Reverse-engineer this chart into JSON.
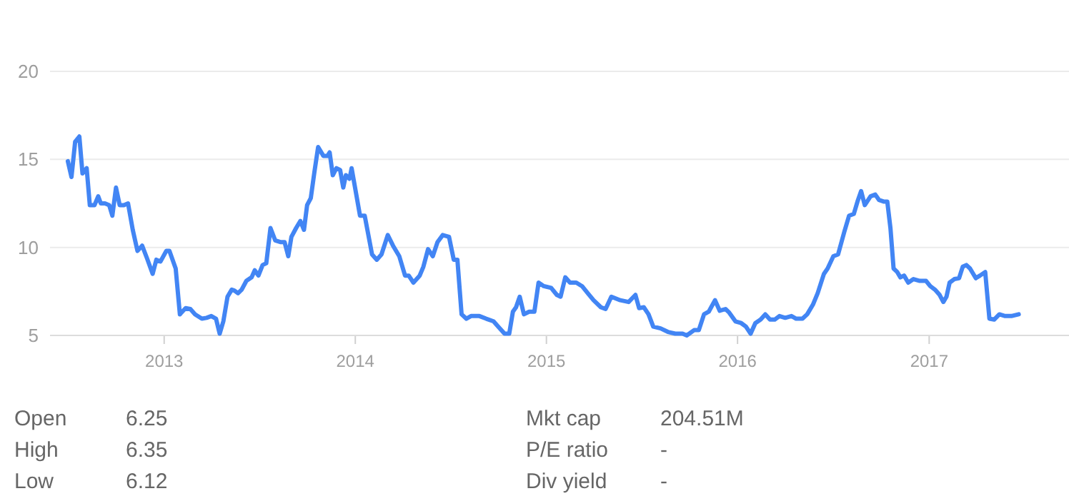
{
  "chart_data": [
    {
      "type": "line",
      "xlim": [
        "2012-05-28",
        "2017-09-25"
      ],
      "xticks": [
        "2013",
        "2014",
        "2015",
        "2016",
        "2017"
      ],
      "ylim": [
        5,
        20
      ],
      "yticks": [
        5,
        10,
        15,
        20
      ],
      "grid": "y",
      "series": [
        {
          "color": "#4285f4",
          "x": [
            "2012-07-01",
            "2012-07-08",
            "2012-07-15",
            "2012-07-23",
            "2012-07-29",
            "2012-08-06",
            "2012-08-12",
            "2012-08-21",
            "2012-08-28",
            "2012-09-02",
            "2012-09-10",
            "2012-09-18",
            "2012-09-24",
            "2012-10-01",
            "2012-10-08",
            "2012-10-16",
            "2012-10-24",
            "2012-11-02",
            "2012-11-11",
            "2012-11-20",
            "2012-11-29",
            "2012-12-10",
            "2012-12-17",
            "2012-12-25",
            "2013-01-05",
            "2013-01-11",
            "2013-01-23",
            "2013-01-31",
            "2013-02-11",
            "2013-02-20",
            "2013-03-01",
            "2013-03-14",
            "2013-03-23",
            "2013-04-01",
            "2013-04-10",
            "2013-04-17",
            "2013-04-24",
            "2013-05-02",
            "2013-05-10",
            "2013-05-15",
            "2013-05-22",
            "2013-05-29",
            "2013-06-07",
            "2013-06-17",
            "2013-06-23",
            "2013-06-30",
            "2013-07-08",
            "2013-07-15",
            "2013-07-23",
            "2013-08-01",
            "2013-08-12",
            "2013-08-19",
            "2013-08-26",
            "2013-09-01",
            "2013-09-10",
            "2013-09-18",
            "2013-09-25",
            "2013-10-01",
            "2013-10-08",
            "2013-10-15",
            "2013-10-22",
            "2013-11-01",
            "2013-11-09",
            "2013-11-13",
            "2013-11-19",
            "2013-11-26",
            "2013-12-03",
            "2013-12-09",
            "2013-12-14",
            "2013-12-21",
            "2013-12-25",
            "2014-01-10",
            "2014-01-19",
            "2014-02-02",
            "2014-02-11",
            "2014-02-20",
            "2014-03-04",
            "2014-03-14",
            "2014-03-26",
            "2014-04-06",
            "2014-04-13",
            "2014-04-22",
            "2014-05-04",
            "2014-05-11",
            "2014-05-20",
            "2014-05-29",
            "2014-06-07",
            "2014-06-17",
            "2014-06-29",
            "2014-07-08",
            "2014-07-15",
            "2014-07-23",
            "2014-08-01",
            "2014-08-10",
            "2014-08-26",
            "2014-09-08",
            "2014-09-22",
            "2014-10-01",
            "2014-10-13",
            "2014-10-22",
            "2014-10-29",
            "2014-11-04",
            "2014-11-11",
            "2014-11-19",
            "2014-11-29",
            "2014-12-09",
            "2014-12-17",
            "2014-12-27",
            "2015-01-10",
            "2015-01-21",
            "2015-01-28",
            "2015-02-06",
            "2015-02-15",
            "2015-02-27",
            "2015-03-10",
            "2015-03-21",
            "2015-04-01",
            "2015-04-15",
            "2015-04-24",
            "2015-05-05",
            "2015-05-22",
            "2015-06-07",
            "2015-06-20",
            "2015-06-27",
            "2015-07-06",
            "2015-07-15",
            "2015-07-24",
            "2015-08-07",
            "2015-08-21",
            "2015-09-04",
            "2015-09-18",
            "2015-09-26",
            "2015-10-10",
            "2015-10-19",
            "2015-10-29",
            "2015-11-07",
            "2015-11-19",
            "2015-11-28",
            "2015-12-09",
            "2015-12-16",
            "2015-12-28",
            "2016-01-08",
            "2016-01-17",
            "2016-01-26",
            "2016-02-04",
            "2016-02-14",
            "2016-02-23",
            "2016-03-03",
            "2016-03-12",
            "2016-03-21",
            "2016-04-01",
            "2016-04-13",
            "2016-04-22",
            "2016-05-04",
            "2016-05-13",
            "2016-05-24",
            "2016-06-02",
            "2016-06-14",
            "2016-06-21",
            "2016-07-02",
            "2016-07-11",
            "2016-07-23",
            "2016-08-01",
            "2016-08-10",
            "2016-08-17",
            "2016-08-24",
            "2016-08-31",
            "2016-09-11",
            "2016-09-20",
            "2016-09-27",
            "2016-10-07",
            "2016-10-13",
            "2016-10-19",
            "2016-10-25",
            "2016-11-01",
            "2016-11-07",
            "2016-11-14",
            "2016-11-22",
            "2016-12-02",
            "2016-12-14",
            "2016-12-26",
            "2017-01-03",
            "2017-01-12",
            "2017-01-21",
            "2017-01-28",
            "2017-02-03",
            "2017-02-09",
            "2017-02-18",
            "2017-02-27",
            "2017-03-06",
            "2017-03-13",
            "2017-03-20",
            "2017-03-31",
            "2017-04-08",
            "2017-04-18",
            "2017-04-26",
            "2017-05-05",
            "2017-05-15",
            "2017-05-26",
            "2017-06-07",
            "2017-06-21"
          ],
          "values": [
            14.9,
            14.0,
            16.0,
            16.3,
            14.2,
            14.5,
            12.4,
            12.4,
            12.9,
            12.5,
            12.5,
            12.4,
            11.8,
            13.4,
            12.4,
            12.4,
            12.5,
            11.0,
            9.8,
            10.1,
            9.4,
            8.5,
            9.3,
            9.2,
            9.8,
            9.8,
            8.8,
            6.2,
            6.55,
            6.5,
            6.2,
            5.95,
            6.0,
            6.1,
            5.95,
            5.1,
            5.8,
            7.2,
            7.6,
            7.55,
            7.4,
            7.6,
            8.1,
            8.3,
            8.7,
            8.4,
            9.0,
            9.1,
            11.1,
            10.4,
            10.3,
            10.3,
            9.5,
            10.6,
            11.1,
            11.5,
            11.0,
            12.4,
            12.8,
            14.3,
            15.7,
            15.2,
            15.2,
            15.4,
            14.1,
            14.5,
            14.4,
            13.4,
            14.1,
            13.9,
            14.5,
            11.8,
            11.8,
            9.6,
            9.3,
            9.6,
            10.7,
            10.1,
            9.5,
            8.4,
            8.4,
            8.0,
            8.4,
            8.9,
            9.9,
            9.5,
            10.3,
            10.7,
            10.6,
            9.3,
            9.3,
            6.2,
            5.95,
            6.1,
            6.1,
            5.95,
            5.8,
            5.5,
            5.1,
            5.1,
            6.35,
            6.6,
            7.2,
            6.2,
            6.35,
            6.35,
            8.0,
            7.8,
            7.7,
            7.3,
            7.2,
            8.3,
            8.0,
            8.0,
            7.8,
            7.4,
            7.0,
            6.6,
            6.5,
            7.2,
            7.0,
            6.9,
            7.3,
            6.55,
            6.6,
            6.2,
            5.5,
            5.4,
            5.2,
            5.1,
            5.1,
            5.0,
            5.3,
            5.3,
            6.2,
            6.35,
            7.0,
            6.4,
            6.5,
            6.3,
            5.8,
            5.7,
            5.5,
            5.1,
            5.7,
            5.9,
            6.2,
            5.9,
            5.9,
            6.1,
            6.0,
            6.1,
            5.95,
            5.95,
            6.2,
            6.75,
            7.4,
            8.5,
            8.8,
            9.5,
            9.6,
            10.9,
            11.8,
            11.9,
            12.6,
            13.2,
            12.4,
            12.9,
            13.0,
            12.7,
            12.6,
            12.6,
            11.1,
            8.8,
            8.6,
            8.3,
            8.4,
            8.0,
            8.2,
            8.1,
            8.1,
            7.8,
            7.6,
            7.3,
            6.9,
            7.2,
            8.0,
            8.2,
            8.25,
            8.9,
            9.0,
            8.8,
            8.25,
            8.4,
            8.6,
            5.95,
            5.9,
            6.2,
            6.1,
            6.1,
            6.2
          ]
        }
      ]
    },
    {
      "type": "other",
      "annotations": [
        "Open",
        "6.25",
        "High",
        "6.35",
        "Low",
        "6.12",
        "Mkt cap",
        "204.51M",
        "P/E ratio",
        "-",
        "Div yield",
        "-"
      ]
    }
  ]
}
